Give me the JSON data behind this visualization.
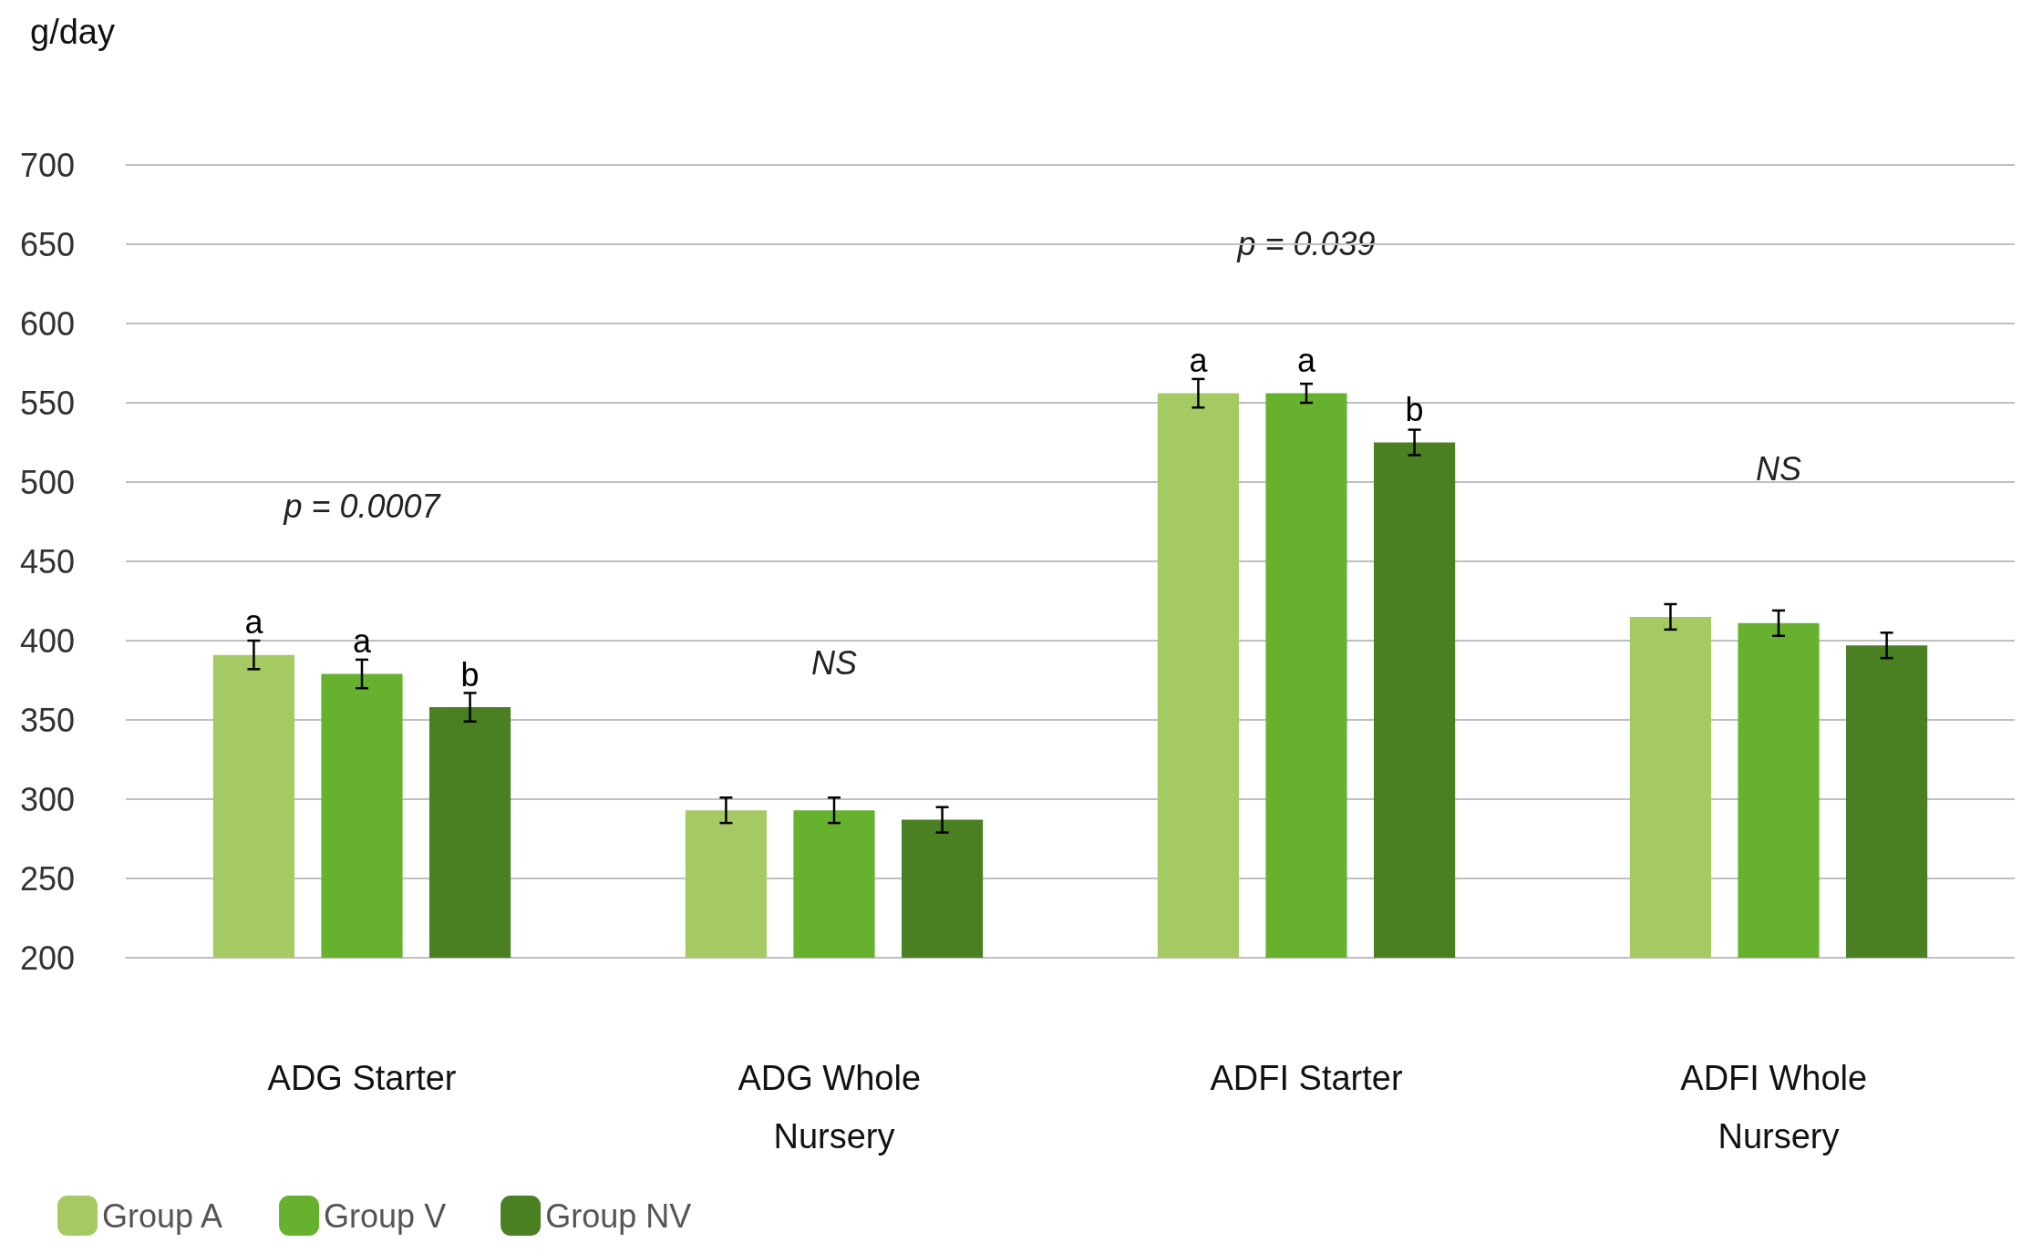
{
  "chart_data": {
    "type": "bar",
    "ylabel": "g/day",
    "categories": [
      "ADG Starter",
      "ADG Whole Nursery",
      "ADFI Starter",
      "ADFI Whole Nursery"
    ],
    "series": [
      {
        "name": "Group A",
        "color": "#a6ca63",
        "values": [
          391,
          293,
          556,
          415
        ],
        "errors": [
          9,
          8,
          9,
          8
        ],
        "value_labels": [
          "a",
          null,
          "a",
          null
        ]
      },
      {
        "name": "Group V",
        "color": "#66b22e",
        "values": [
          379,
          293,
          556,
          411
        ],
        "errors": [
          9,
          8,
          6,
          8
        ],
        "value_labels": [
          "a",
          null,
          "a",
          null
        ]
      },
      {
        "name": "Group NV",
        "color": "#4a7f22",
        "values": [
          358,
          287,
          525,
          397
        ],
        "errors": [
          9,
          8,
          8,
          8
        ],
        "value_labels": [
          "b",
          null,
          "b",
          null
        ]
      }
    ],
    "ylim": [
      200,
      700
    ],
    "yticks": [
      200,
      250,
      300,
      350,
      400,
      450,
      500,
      550,
      600,
      650,
      700
    ],
    "grid": "y",
    "legend": "bottom left",
    "annotations": [
      "p = 0.0007",
      "NS",
      "p = 0.039",
      "NS"
    ]
  }
}
